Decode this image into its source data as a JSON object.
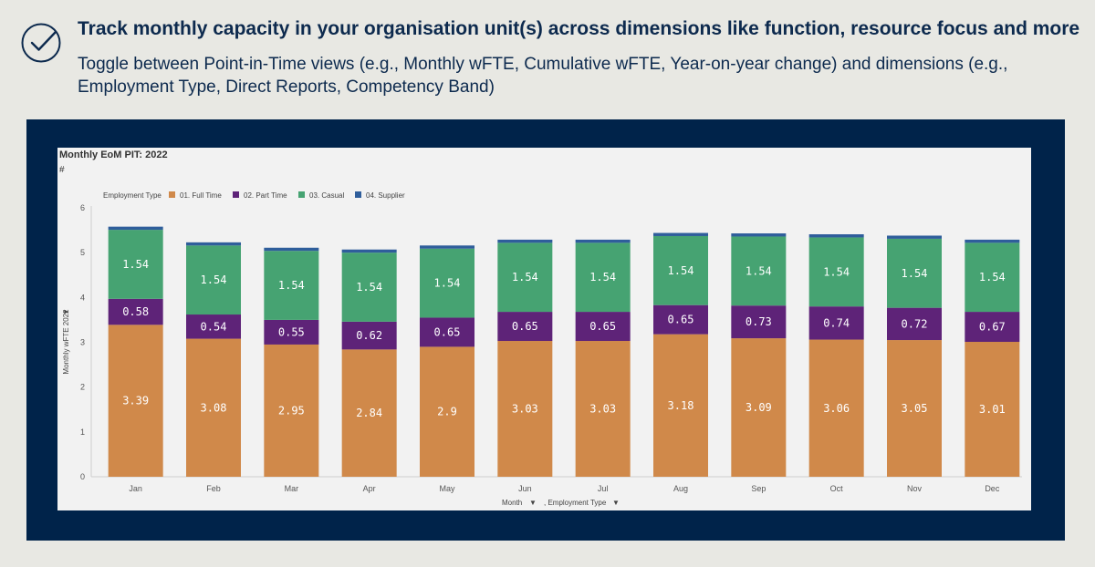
{
  "header": {
    "title": "Track monthly capacity in your organisation unit(s) across dimensions like function, resource focus and more",
    "subtitle": "Toggle between Point-in-Time views (e.g., Monthly wFTE, Cumulative wFTE, Year-on-year change) and dimensions (e.g., Employment Type, Direct Reports, Competency Band)",
    "icon": "check-circle-icon"
  },
  "chart_data": {
    "type": "bar",
    "stacked": true,
    "title": "Monthly EoM PIT: 2022",
    "unit_symbol": "#",
    "legend_title": "Employment Type",
    "categories": [
      "Jan",
      "Feb",
      "Mar",
      "Apr",
      "May",
      "Jun",
      "Jul",
      "Aug",
      "Sep",
      "Oct",
      "Nov",
      "Dec"
    ],
    "series": [
      {
        "name": "01. Full Time",
        "color": "#d0894a",
        "values": [
          3.39,
          3.08,
          2.95,
          2.84,
          2.9,
          3.03,
          3.03,
          3.18,
          3.09,
          3.06,
          3.05,
          3.01
        ],
        "labels": [
          "3.39",
          "3.08",
          "2.95",
          "2.84",
          "2.9",
          "3.03",
          "3.03",
          "3.18",
          "3.09",
          "3.06",
          "3.05",
          "3.01"
        ]
      },
      {
        "name": "02. Part Time",
        "color": "#5e2378",
        "values": [
          0.58,
          0.54,
          0.55,
          0.62,
          0.65,
          0.65,
          0.65,
          0.65,
          0.73,
          0.74,
          0.72,
          0.67
        ],
        "labels": [
          "0.58",
          "0.54",
          "0.55",
          "0.62",
          "0.65",
          "0.65",
          "0.65",
          "0.65",
          "0.73",
          "0.74",
          "0.72",
          "0.67"
        ]
      },
      {
        "name": "03. Casual",
        "color": "#46a372",
        "values": [
          1.54,
          1.54,
          1.54,
          1.54,
          1.54,
          1.54,
          1.54,
          1.54,
          1.54,
          1.54,
          1.54,
          1.54
        ],
        "labels": [
          "1.54",
          "1.54",
          "1.54",
          "1.54",
          "1.54",
          "1.54",
          "1.54",
          "1.54",
          "1.54",
          "1.54",
          "1.54",
          "1.54"
        ]
      },
      {
        "name": "04. Supplier",
        "color": "#2f5e9b",
        "values": [
          0.07,
          0.07,
          0.07,
          0.07,
          0.07,
          0.07,
          0.07,
          0.07,
          0.07,
          0.07,
          0.07,
          0.07
        ],
        "labels": []
      }
    ],
    "yticks": [
      "0",
      "1",
      "2",
      "3",
      "4",
      "5",
      "6"
    ],
    "ylim": [
      0,
      6
    ],
    "ylabel": "Monthly wFTE 2022",
    "xlabel": "Month",
    "xlabel_secondary": ", Employment Type",
    "legend_position": "top-left"
  }
}
